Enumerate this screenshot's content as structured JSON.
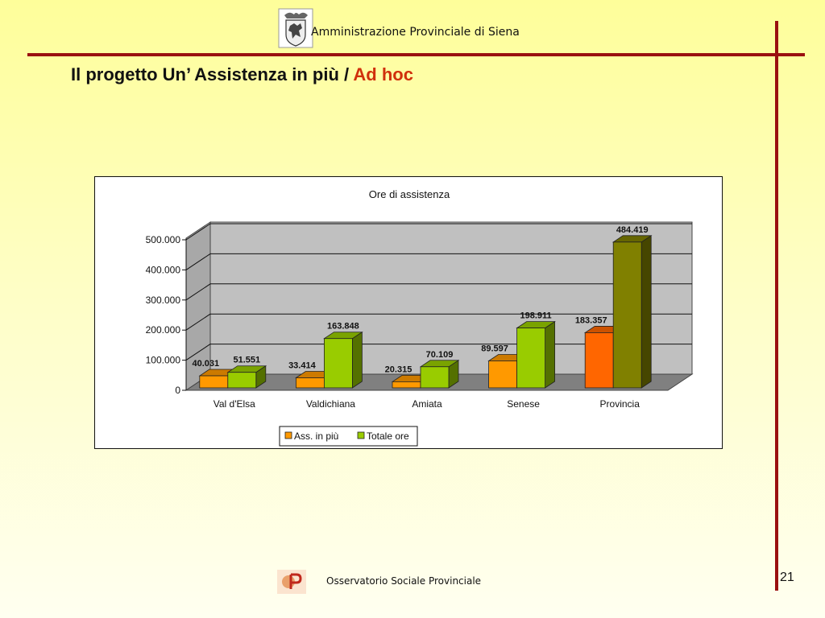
{
  "header": {
    "organization": "Amministrazione Provinciale di Siena",
    "logo_icon": "province-crest-icon"
  },
  "title": {
    "main": "Il progetto Un’ Assistenza in più",
    "separator": " / ",
    "accent": "Ad hoc",
    "accent_color": "#d0300c"
  },
  "chart_data": {
    "type": "bar",
    "title": "Ore di assistenza",
    "categories": [
      "Val d'Elsa",
      "Valdichiana",
      "Amiata",
      "Senese",
      "Provincia"
    ],
    "series": [
      {
        "name": "Ass. in più",
        "values": [
          40031,
          33414,
          20315,
          89597,
          183357
        ],
        "labels": [
          "40.031",
          "33.414",
          "20.315",
          "89.597",
          "183.357"
        ]
      },
      {
        "name": "Totale ore",
        "values": [
          51551,
          163848,
          70109,
          198911,
          484419
        ],
        "labels": [
          "51.551",
          "163.848",
          "70.109",
          "198.911",
          "484.419"
        ]
      }
    ],
    "y_ticks": [
      "0",
      "100.000",
      "200.000",
      "300.000",
      "400.000",
      "500.000"
    ],
    "ylim": [
      0,
      500000
    ],
    "grid": true,
    "legend_position": "bottom",
    "style": "3d-clustered-column",
    "colors": {
      "orange": "#ff9900",
      "orange_highlight": "#ff6600",
      "green": "#99cc00",
      "olive": "#808000",
      "wall": "#c0c0c0",
      "floor": "#808080"
    }
  },
  "footer": {
    "text": "Osservatorio Sociale Provinciale",
    "logo_icon": "osp-logo-icon"
  },
  "page_number": "21",
  "colors": {
    "rule": "#9a1010"
  }
}
